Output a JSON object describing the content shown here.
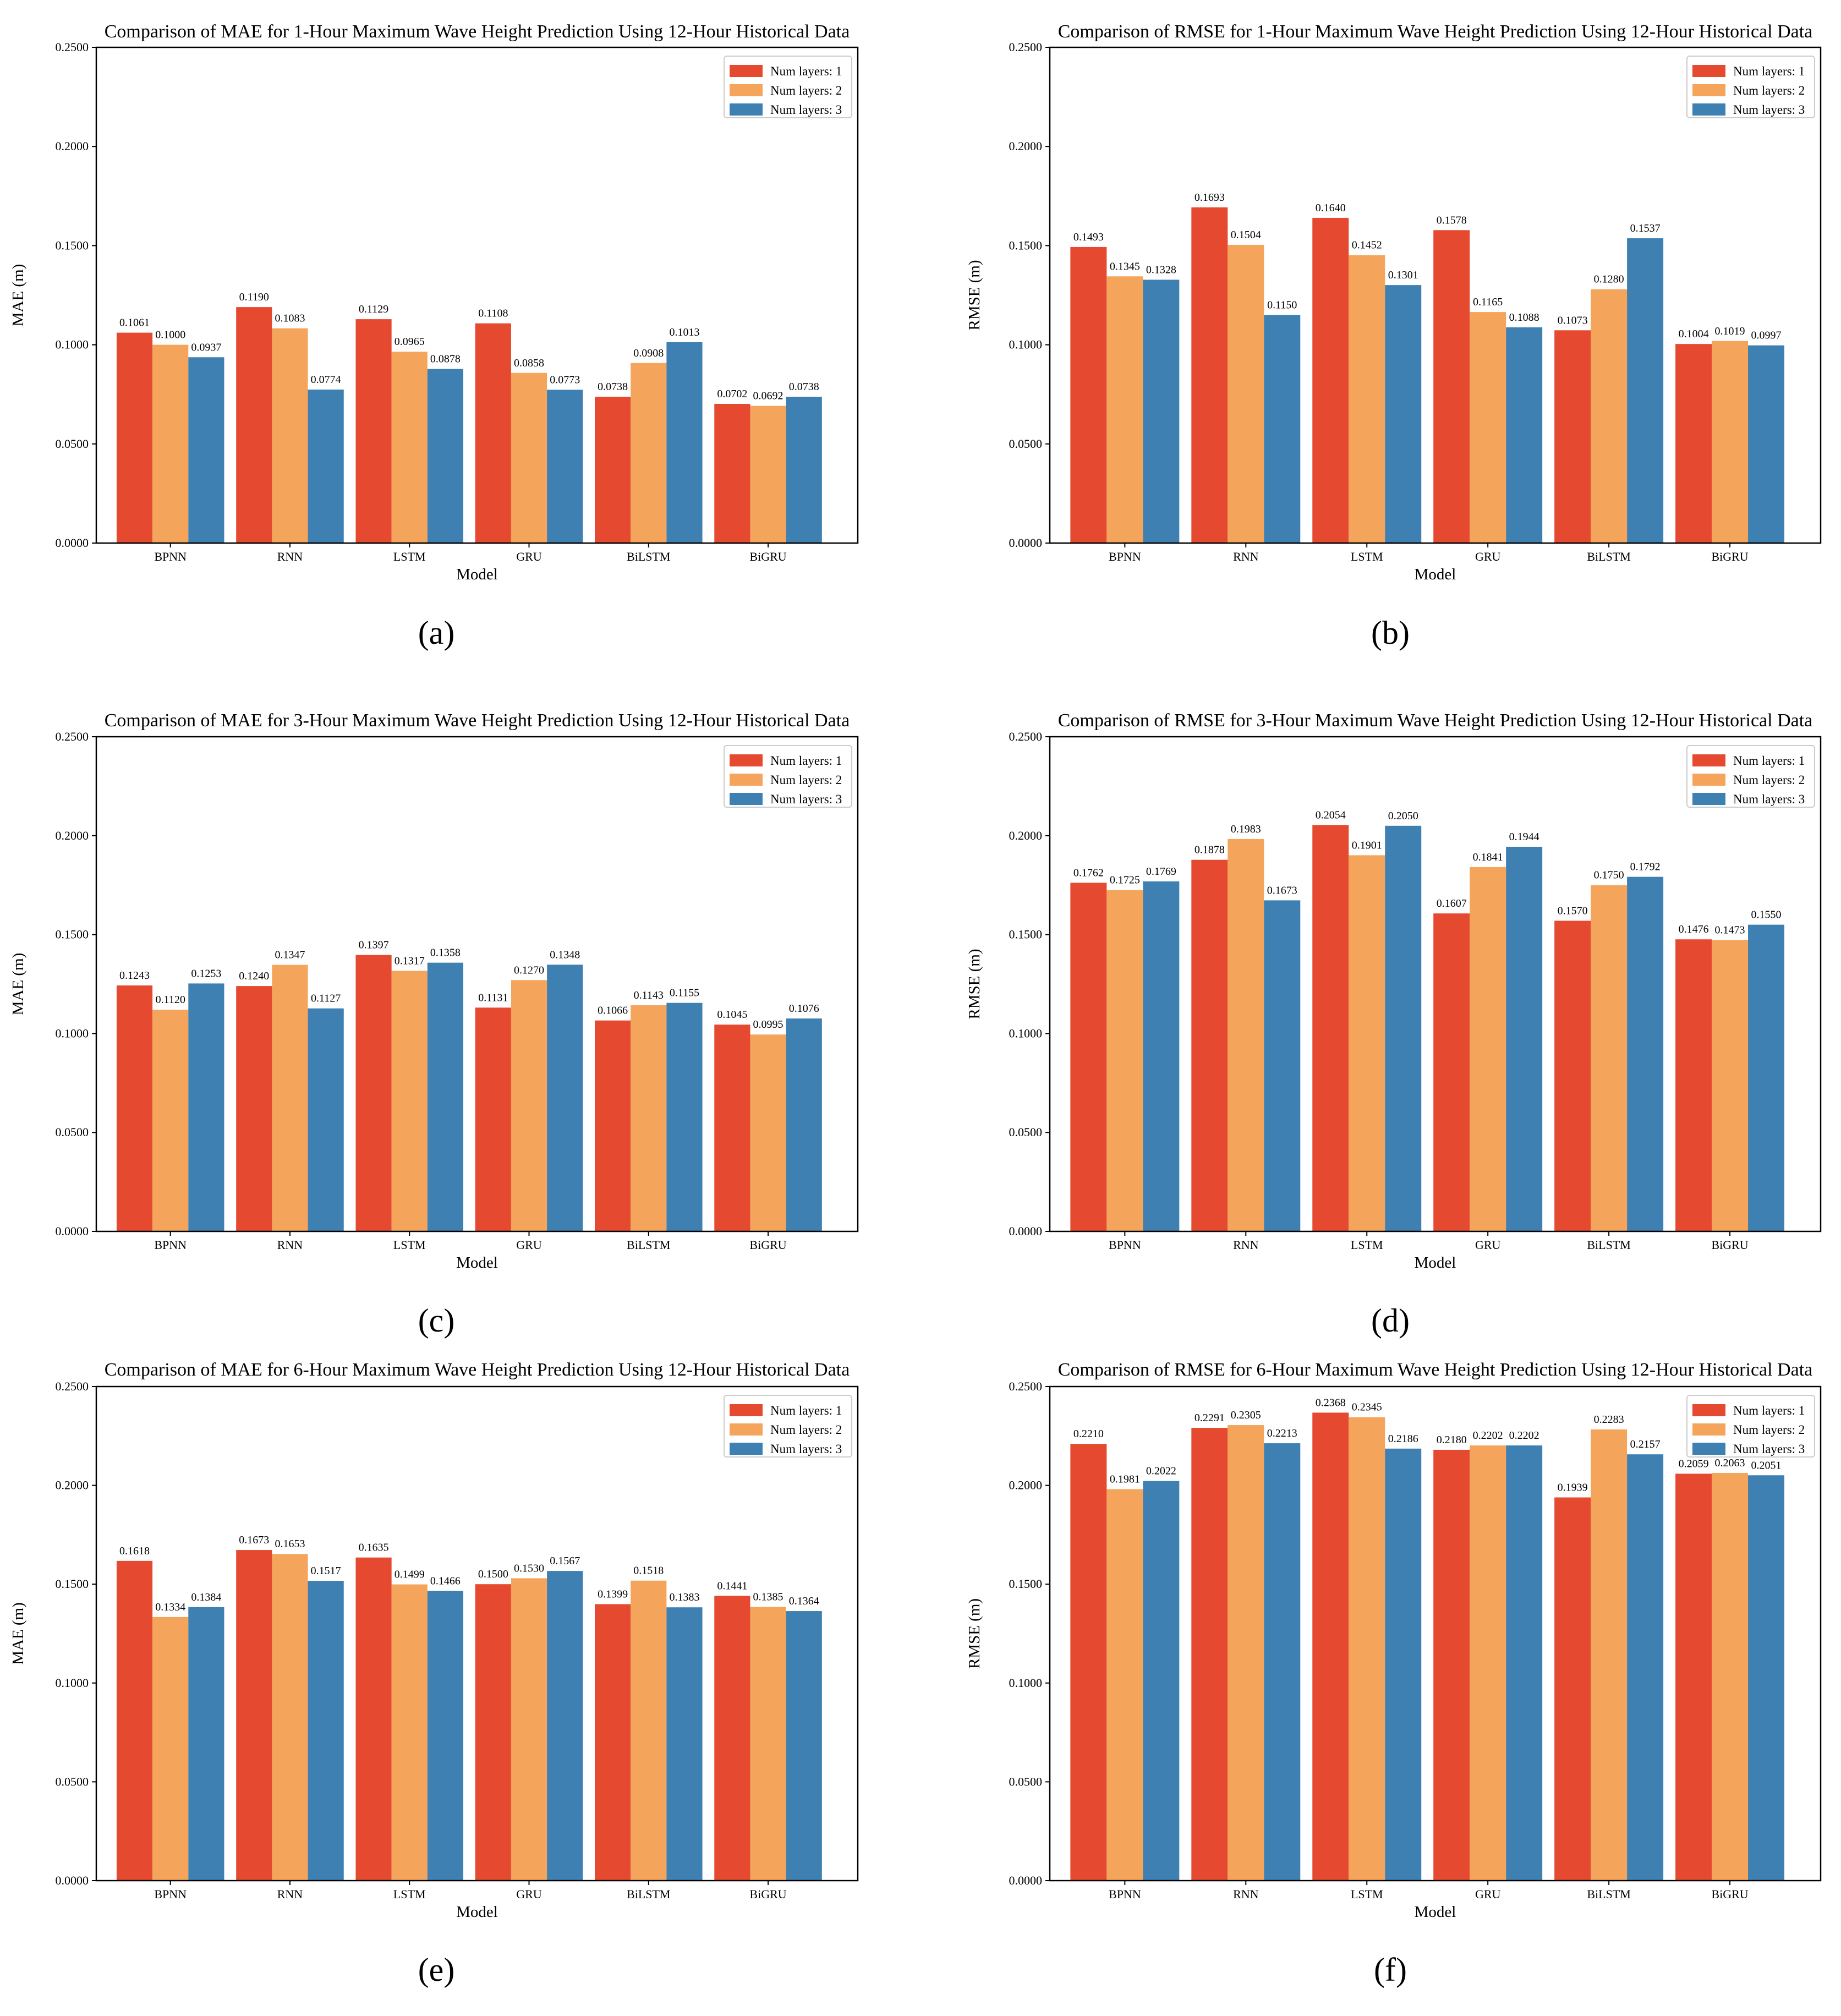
{
  "colors": {
    "layers1": "#e5492f",
    "layers2": "#f4a55b",
    "layers3": "#3d80b1"
  },
  "chart_data": [
    {
      "type": "bar",
      "panel": "(a)",
      "title": "Comparison of MAE for 1-Hour Maximum Wave Height Prediction Using 12-Hour Historical Data",
      "xlabel": "Model",
      "ylabel": "MAE (m)",
      "ylim": [
        0,
        0.25
      ],
      "yticks": [
        "0.0000",
        "0.0500",
        "0.1000",
        "0.1500",
        "0.2000",
        "0.2500"
      ],
      "legend_position": "top-right",
      "categories": [
        "BPNN",
        "RNN",
        "LSTM",
        "GRU",
        "BiLSTM",
        "BiGRU"
      ],
      "series": [
        {
          "name": "Num layers: 1",
          "values": [
            0.1061,
            0.119,
            0.1129,
            0.1108,
            0.0738,
            0.0702
          ]
        },
        {
          "name": "Num layers: 2",
          "values": [
            0.1,
            0.1083,
            0.0965,
            0.0858,
            0.0908,
            0.0692
          ]
        },
        {
          "name": "Num layers: 3",
          "values": [
            0.0937,
            0.0774,
            0.0878,
            0.0773,
            0.1013,
            0.0738
          ]
        }
      ]
    },
    {
      "type": "bar",
      "panel": "(b)",
      "title": "Comparison of RMSE for 1-Hour Maximum Wave Height Prediction Using 12-Hour Historical Data",
      "xlabel": "Model",
      "ylabel": "RMSE (m)",
      "ylim": [
        0,
        0.25
      ],
      "yticks": [
        "0.0000",
        "0.0500",
        "0.1000",
        "0.1500",
        "0.2000",
        "0.2500"
      ],
      "legend_position": "top-right",
      "categories": [
        "BPNN",
        "RNN",
        "LSTM",
        "GRU",
        "BiLSTM",
        "BiGRU"
      ],
      "series": [
        {
          "name": "Num layers: 1",
          "values": [
            0.1493,
            0.1693,
            0.164,
            0.1578,
            0.1073,
            0.1004
          ]
        },
        {
          "name": "Num layers: 2",
          "values": [
            0.1345,
            0.1504,
            0.1452,
            0.1165,
            0.128,
            0.1019
          ]
        },
        {
          "name": "Num layers: 3",
          "values": [
            0.1328,
            0.115,
            0.1301,
            0.1088,
            0.1537,
            0.0997
          ]
        }
      ]
    },
    {
      "type": "bar",
      "panel": "(c)",
      "title": "Comparison of MAE for 3-Hour Maximum Wave Height Prediction Using 12-Hour Historical Data",
      "xlabel": "Model",
      "ylabel": "MAE (m)",
      "ylim": [
        0,
        0.25
      ],
      "yticks": [
        "0.0000",
        "0.0500",
        "0.1000",
        "0.1500",
        "0.2000",
        "0.2500"
      ],
      "legend_position": "top-right",
      "categories": [
        "BPNN",
        "RNN",
        "LSTM",
        "GRU",
        "BiLSTM",
        "BiGRU"
      ],
      "series": [
        {
          "name": "Num layers: 1",
          "values": [
            0.1243,
            0.124,
            0.1397,
            0.1131,
            0.1066,
            0.1045
          ]
        },
        {
          "name": "Num layers: 2",
          "values": [
            0.112,
            0.1347,
            0.1317,
            0.127,
            0.1143,
            0.0995
          ]
        },
        {
          "name": "Num layers: 3",
          "values": [
            0.1253,
            0.1127,
            0.1358,
            0.1348,
            0.1155,
            0.1076
          ]
        }
      ]
    },
    {
      "type": "bar",
      "panel": "(d)",
      "title": "Comparison of RMSE for 3-Hour Maximum Wave Height Prediction Using 12-Hour Historical Data",
      "xlabel": "Model",
      "ylabel": "RMSE (m)",
      "ylim": [
        0,
        0.25
      ],
      "yticks": [
        "0.0000",
        "0.0500",
        "0.1000",
        "0.1500",
        "0.2000",
        "0.2500"
      ],
      "legend_position": "top-right",
      "categories": [
        "BPNN",
        "RNN",
        "LSTM",
        "GRU",
        "BiLSTM",
        "BiGRU"
      ],
      "series": [
        {
          "name": "Num layers: 1",
          "values": [
            0.1762,
            0.1878,
            0.2054,
            0.1607,
            0.157,
            0.1476
          ]
        },
        {
          "name": "Num layers: 2",
          "values": [
            0.1725,
            0.1983,
            0.1901,
            0.1841,
            0.175,
            0.1473
          ]
        },
        {
          "name": "Num layers: 3",
          "values": [
            0.1769,
            0.1673,
            0.205,
            0.1944,
            0.1792,
            0.155
          ]
        }
      ]
    },
    {
      "type": "bar",
      "panel": "(e)",
      "title": "Comparison of MAE for 6-Hour Maximum Wave Height Prediction Using 12-Hour Historical Data",
      "xlabel": "Model",
      "ylabel": "MAE (m)",
      "ylim": [
        0,
        0.25
      ],
      "yticks": [
        "0.0000",
        "0.0500",
        "0.1000",
        "0.1500",
        "0.2000",
        "0.2500"
      ],
      "legend_position": "top-right",
      "categories": [
        "BPNN",
        "RNN",
        "LSTM",
        "GRU",
        "BiLSTM",
        "BiGRU"
      ],
      "series": [
        {
          "name": "Num layers: 1",
          "values": [
            0.1618,
            0.1673,
            0.1635,
            0.15,
            0.1399,
            0.1441
          ]
        },
        {
          "name": "Num layers: 2",
          "values": [
            0.1334,
            0.1653,
            0.1499,
            0.153,
            0.1518,
            0.1385
          ]
        },
        {
          "name": "Num layers: 3",
          "values": [
            0.1384,
            0.1517,
            0.1466,
            0.1567,
            0.1383,
            0.1364
          ]
        }
      ]
    },
    {
      "type": "bar",
      "panel": "(f)",
      "title": "Comparison of RMSE for 6-Hour Maximum Wave Height Prediction Using 12-Hour Historical Data",
      "xlabel": "Model",
      "ylabel": "RMSE (m)",
      "ylim": [
        0,
        0.25
      ],
      "yticks": [
        "0.0000",
        "0.0500",
        "0.1000",
        "0.1500",
        "0.2000",
        "0.2500"
      ],
      "legend_position": "top-right",
      "categories": [
        "BPNN",
        "RNN",
        "LSTM",
        "GRU",
        "BiLSTM",
        "BiGRU"
      ],
      "series": [
        {
          "name": "Num layers: 1",
          "values": [
            0.221,
            0.2291,
            0.2368,
            0.218,
            0.1939,
            0.2059
          ]
        },
        {
          "name": "Num layers: 2",
          "values": [
            0.1981,
            0.2305,
            0.2345,
            0.2202,
            0.2283,
            0.2063
          ]
        },
        {
          "name": "Num layers: 3",
          "values": [
            0.2022,
            0.2213,
            0.2186,
            0.2202,
            0.2157,
            0.2051
          ]
        }
      ]
    }
  ]
}
